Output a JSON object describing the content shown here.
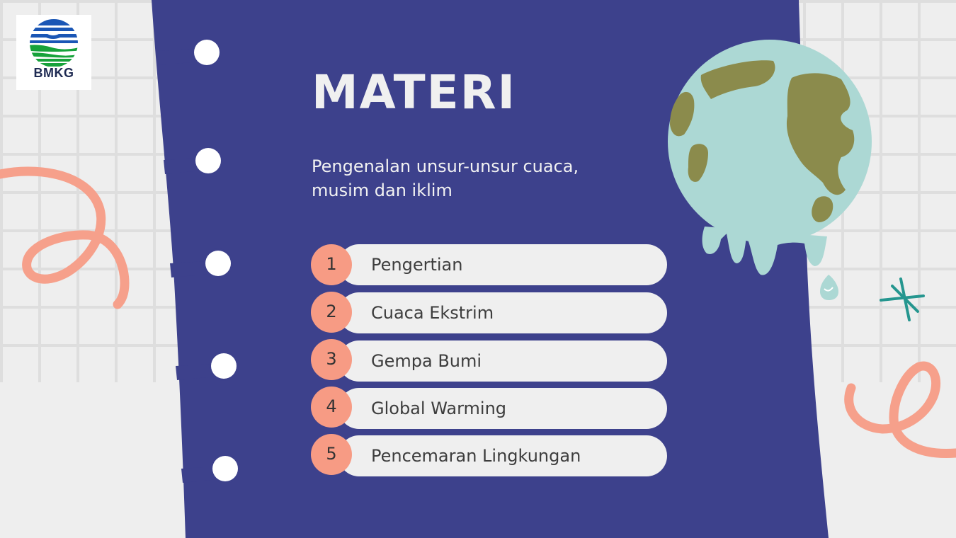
{
  "logo": {
    "text": "BMKG",
    "colors": {
      "blue": "#1a56b5",
      "green": "#16a23a"
    }
  },
  "slide": {
    "title": "MATERI",
    "subtitle": "Pengenalan unsur-unsur cuaca, musim dan iklim",
    "items": [
      {
        "number": "1",
        "label": "Pengertian"
      },
      {
        "number": "2",
        "label": "Cuaca Ekstrim"
      },
      {
        "number": "3",
        "label": "Gempa Bumi"
      },
      {
        "number": "4",
        "label": "Global Warming"
      },
      {
        "number": "5",
        "label": "Pencemaran Lingkungan"
      }
    ]
  },
  "decorations": {
    "notebook": "spiral-notebook-page",
    "globe": "melting-globe-illustration",
    "doodles": [
      "squiggle-loop-left",
      "squiggle-loop-right",
      "sparkle-star"
    ]
  },
  "colors": {
    "background": "#eeeeee",
    "grid_lines": "#dedede",
    "notebook": "#3d418c",
    "accent_coral": "#f79b84",
    "pill": "#efefef",
    "globe_water": "#acd8d4",
    "globe_land": "#8b8b4c",
    "star": "#25968f"
  }
}
